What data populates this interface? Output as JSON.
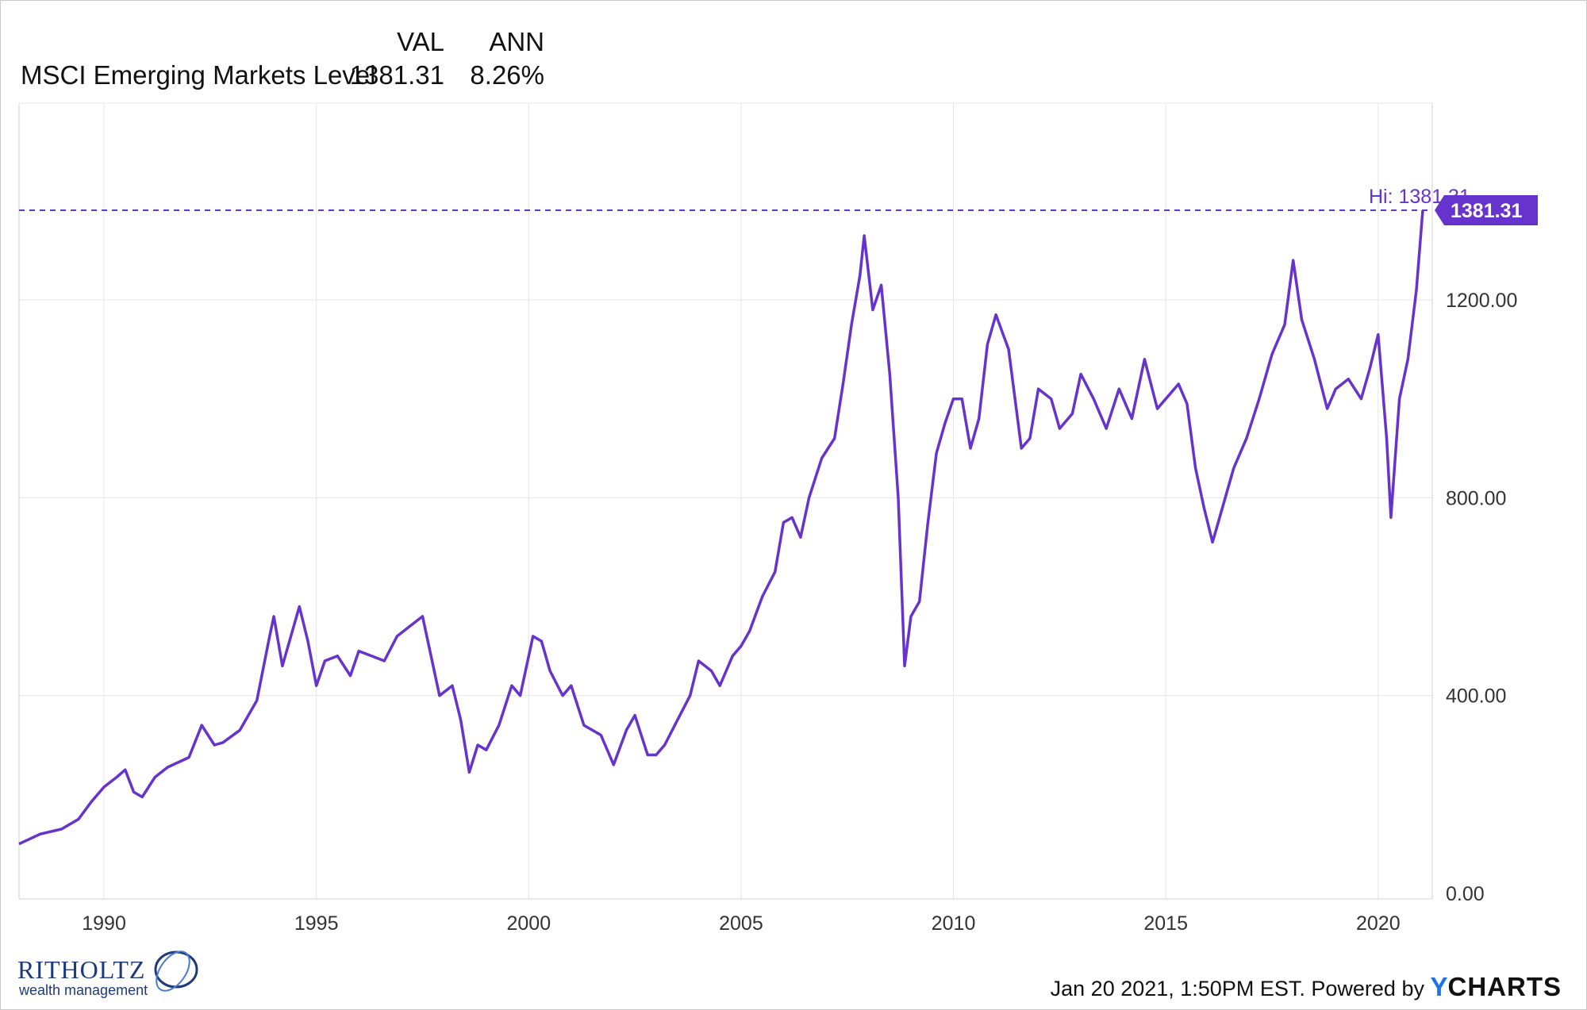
{
  "header": {
    "col_val": "VAL",
    "col_ann": "ANN",
    "series_label": "MSCI Emerging Markets Level",
    "val": "1381.31",
    "ann": "8.26%"
  },
  "footer": {
    "timestamp": "Jan 20 2021, 1:50PM EST.",
    "powered_by": "Powered by",
    "brand_y": "Y",
    "brand_rest": "CHARTS"
  },
  "logo": {
    "name": "RITHOLTZ",
    "sub": "wealth management"
  },
  "colors": {
    "series": "#6633cc",
    "grid": "#e6e6e6",
    "text": "#111111"
  },
  "chart_data": {
    "type": "line",
    "series": [
      {
        "name": "MSCI Emerging Markets Level",
        "x": [
          1988.0,
          1988.5,
          1989.0,
          1989.4,
          1989.7,
          1990.0,
          1990.3,
          1990.5,
          1990.7,
          1990.9,
          1991.2,
          1991.5,
          1992.0,
          1992.3,
          1992.6,
          1992.8,
          1993.2,
          1993.6,
          1993.9,
          1994.0,
          1994.2,
          1994.6,
          1994.8,
          1995.0,
          1995.2,
          1995.5,
          1995.8,
          1996.0,
          1996.3,
          1996.6,
          1996.9,
          1997.2,
          1997.5,
          1997.7,
          1997.9,
          1998.2,
          1998.4,
          1998.6,
          1998.8,
          1999.0,
          1999.3,
          1999.6,
          1999.8,
          2000.1,
          2000.3,
          2000.5,
          2000.8,
          2001.0,
          2001.3,
          2001.7,
          2002.0,
          2002.3,
          2002.5,
          2002.8,
          2003.0,
          2003.2,
          2003.5,
          2003.8,
          2004.0,
          2004.3,
          2004.5,
          2004.8,
          2005.0,
          2005.2,
          2005.5,
          2005.8,
          2006.0,
          2006.2,
          2006.4,
          2006.6,
          2006.9,
          2007.2,
          2007.4,
          2007.6,
          2007.8,
          2007.9,
          2008.1,
          2008.3,
          2008.5,
          2008.7,
          2008.85,
          2009.0,
          2009.2,
          2009.4,
          2009.6,
          2009.8,
          2010.0,
          2010.2,
          2010.4,
          2010.6,
          2010.8,
          2011.0,
          2011.3,
          2011.6,
          2011.8,
          2012.0,
          2012.3,
          2012.5,
          2012.8,
          2013.0,
          2013.3,
          2013.6,
          2013.9,
          2014.2,
          2014.5,
          2014.8,
          2015.0,
          2015.3,
          2015.5,
          2015.7,
          2015.9,
          2016.1,
          2016.3,
          2016.6,
          2016.9,
          2017.2,
          2017.5,
          2017.8,
          2018.0,
          2018.2,
          2018.5,
          2018.8,
          2019.0,
          2019.3,
          2019.6,
          2019.8,
          2020.0,
          2020.2,
          2020.3,
          2020.5,
          2020.7,
          2020.9,
          2021.05
        ],
        "y": [
          100,
          120,
          130,
          150,
          185,
          215,
          235,
          250,
          205,
          195,
          235,
          255,
          275,
          340,
          300,
          305,
          330,
          390,
          520,
          560,
          460,
          580,
          510,
          420,
          470,
          480,
          440,
          490,
          480,
          470,
          520,
          540,
          560,
          480,
          400,
          420,
          350,
          245,
          300,
          290,
          340,
          420,
          400,
          520,
          510,
          450,
          400,
          420,
          340,
          320,
          260,
          330,
          360,
          280,
          280,
          300,
          350,
          400,
          470,
          450,
          420,
          480,
          500,
          530,
          600,
          650,
          750,
          760,
          720,
          800,
          880,
          920,
          1030,
          1150,
          1250,
          1330,
          1180,
          1230,
          1050,
          800,
          460,
          560,
          590,
          750,
          890,
          950,
          1000,
          1000,
          900,
          960,
          1110,
          1170,
          1100,
          900,
          920,
          1020,
          1000,
          940,
          970,
          1050,
          1000,
          940,
          1020,
          960,
          1080,
          980,
          1000,
          1030,
          990,
          860,
          780,
          710,
          770,
          860,
          920,
          1000,
          1090,
          1150,
          1280,
          1160,
          1080,
          980,
          1020,
          1040,
          1000,
          1060,
          1130,
          920,
          760,
          1000,
          1080,
          1220,
          1381.31
        ]
      }
    ],
    "xlim": [
      1988.0,
      2021.05
    ],
    "ylim": [
      0,
      1600
    ],
    "x_ticks": [
      1990,
      1995,
      2000,
      2005,
      2010,
      2015,
      2020
    ],
    "y_ticks": [
      0,
      400,
      800,
      1200
    ],
    "y_tick_labels": [
      "0.00",
      "400.00",
      "800.00",
      "1200.00"
    ],
    "annotations": {
      "high_label": "Hi: 1381.31",
      "high_value": 1381.31,
      "last_value_label": "1381.31"
    },
    "grid": true,
    "y_axis_position": "right"
  }
}
